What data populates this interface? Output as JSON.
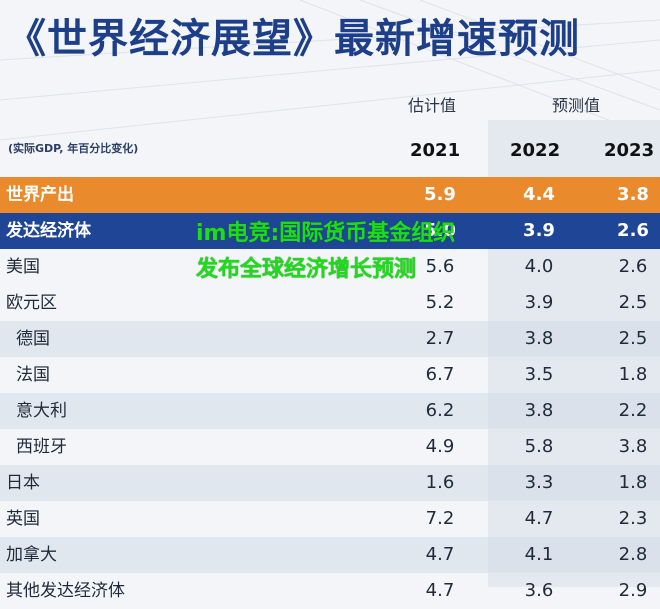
{
  "title": "《世界经济展望》最新增速预测",
  "header": {
    "estimate_label": "估计值",
    "forecast_label": "预测值",
    "unit_note": "(实际GDP, 年百分比变化)",
    "years": [
      "2021",
      "2022",
      "2023"
    ]
  },
  "overlay_text": "im电竞:国际货币基金组织发布全球经济增长预测",
  "colors": {
    "world_row": "#e98a2c",
    "advanced_row": "#1f4696",
    "title": "#1d3f8a",
    "overlay": "#1fdc1a"
  },
  "chart_data": {
    "type": "table",
    "title": "《世界经济展望》最新增速预测",
    "columns": [
      "2021",
      "2022",
      "2023"
    ],
    "rows": [
      {
        "name": "世界产出",
        "values": [
          "5.9",
          "4.4",
          "3.8"
        ],
        "style": "world",
        "indent": false
      },
      {
        "name": "发达经济体",
        "values": [
          "5.0",
          "3.9",
          "2.6"
        ],
        "style": "adv",
        "indent": false
      },
      {
        "name": "美国",
        "values": [
          "5.6",
          "4.0",
          "2.6"
        ],
        "style": "plain",
        "indent": false
      },
      {
        "name": "欧元区",
        "values": [
          "5.2",
          "3.9",
          "2.5"
        ],
        "style": "plain",
        "indent": false
      },
      {
        "name": "德国",
        "values": [
          "2.7",
          "3.8",
          "2.5"
        ],
        "style": "alt",
        "indent": true
      },
      {
        "name": "法国",
        "values": [
          "6.7",
          "3.5",
          "1.8"
        ],
        "style": "plain",
        "indent": true
      },
      {
        "name": "意大利",
        "values": [
          "6.2",
          "3.8",
          "2.2"
        ],
        "style": "alt",
        "indent": true
      },
      {
        "name": "西班牙",
        "values": [
          "4.9",
          "5.8",
          "3.8"
        ],
        "style": "plain",
        "indent": true
      },
      {
        "name": "日本",
        "values": [
          "1.6",
          "3.3",
          "1.8"
        ],
        "style": "alt",
        "indent": false
      },
      {
        "name": "英国",
        "values": [
          "7.2",
          "4.7",
          "2.3"
        ],
        "style": "plain",
        "indent": false
      },
      {
        "name": "加拿大",
        "values": [
          "4.7",
          "4.1",
          "2.8"
        ],
        "style": "alt",
        "indent": false
      },
      {
        "name": "其他发达经济体",
        "values": [
          "4.7",
          "3.6",
          "2.9"
        ],
        "style": "plain",
        "indent": false
      }
    ]
  }
}
